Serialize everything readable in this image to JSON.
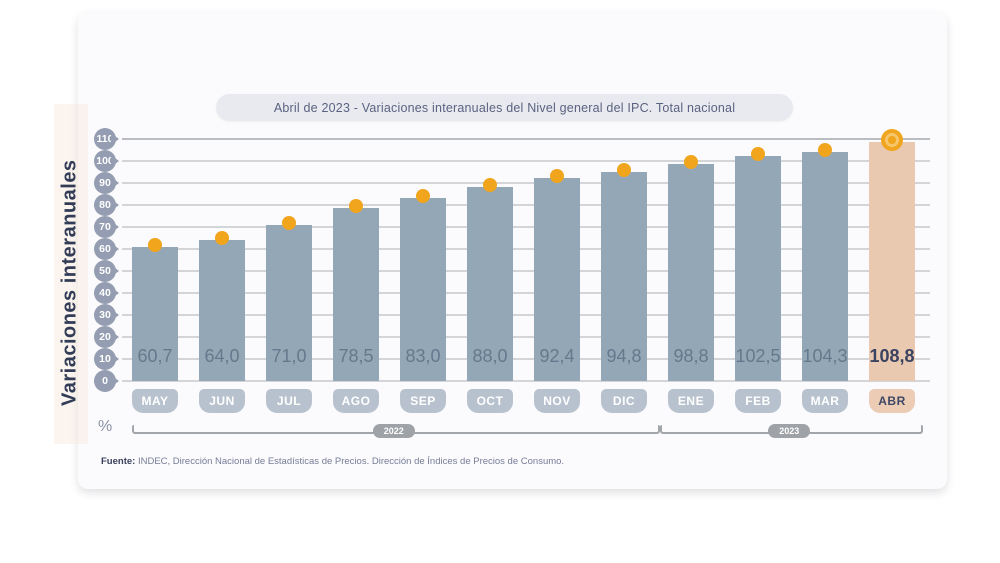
{
  "header": {
    "title": "Abril de 2023 - Variaciones interanuales del Nivel general del IPC. Total nacional"
  },
  "y_axis": {
    "label": "Variaciones interanuales",
    "unit": "%"
  },
  "footer": {
    "source_label": "Fuente:",
    "source_text": "INDEC, Dirección Nacional de Estadísticas de Precios. Dirección de Índices de Precios de Consumo."
  },
  "colors": {
    "bar": "#94a7b6",
    "bar_highlight": "#eac9b1",
    "dot": "#f1a51d",
    "tick_balloon": "#949db1",
    "month_tab": "#b8c2ce",
    "month_tab_highlight": "#ecccb4",
    "gridline": "#d3d5d9",
    "bracket": "#a2a6ab"
  },
  "chart_data": {
    "type": "bar",
    "title": "Abril de 2023 - Variaciones interanuales del Nivel general del IPC. Total nacional",
    "ylabel": "Variaciones interanuales",
    "unit": "%",
    "categories": [
      "MAY",
      "JUN",
      "JUL",
      "AGO",
      "SEP",
      "OCT",
      "NOV",
      "DIC",
      "ENE",
      "FEB",
      "MAR",
      "ABR"
    ],
    "values": [
      60.7,
      64.0,
      71.0,
      78.5,
      83.0,
      88.0,
      92.4,
      94.8,
      98.8,
      102.5,
      104.3,
      108.8
    ],
    "value_labels": [
      "60,7",
      "64,0",
      "71,0",
      "78,5",
      "83,0",
      "88,0",
      "92,4",
      "94,8",
      "98,8",
      "102,5",
      "104,3",
      "108,8"
    ],
    "highlight_index": 11,
    "ylim": [
      0,
      110
    ],
    "yticks": [
      0,
      10,
      20,
      30,
      40,
      50,
      60,
      70,
      80,
      90,
      100,
      110
    ],
    "grid": true,
    "point_markers": true,
    "legend": null,
    "year_groups": [
      {
        "label": "2022",
        "start_index": 0,
        "end_index": 7
      },
      {
        "label": "2023",
        "start_index": 8,
        "end_index": 11
      }
    ]
  }
}
